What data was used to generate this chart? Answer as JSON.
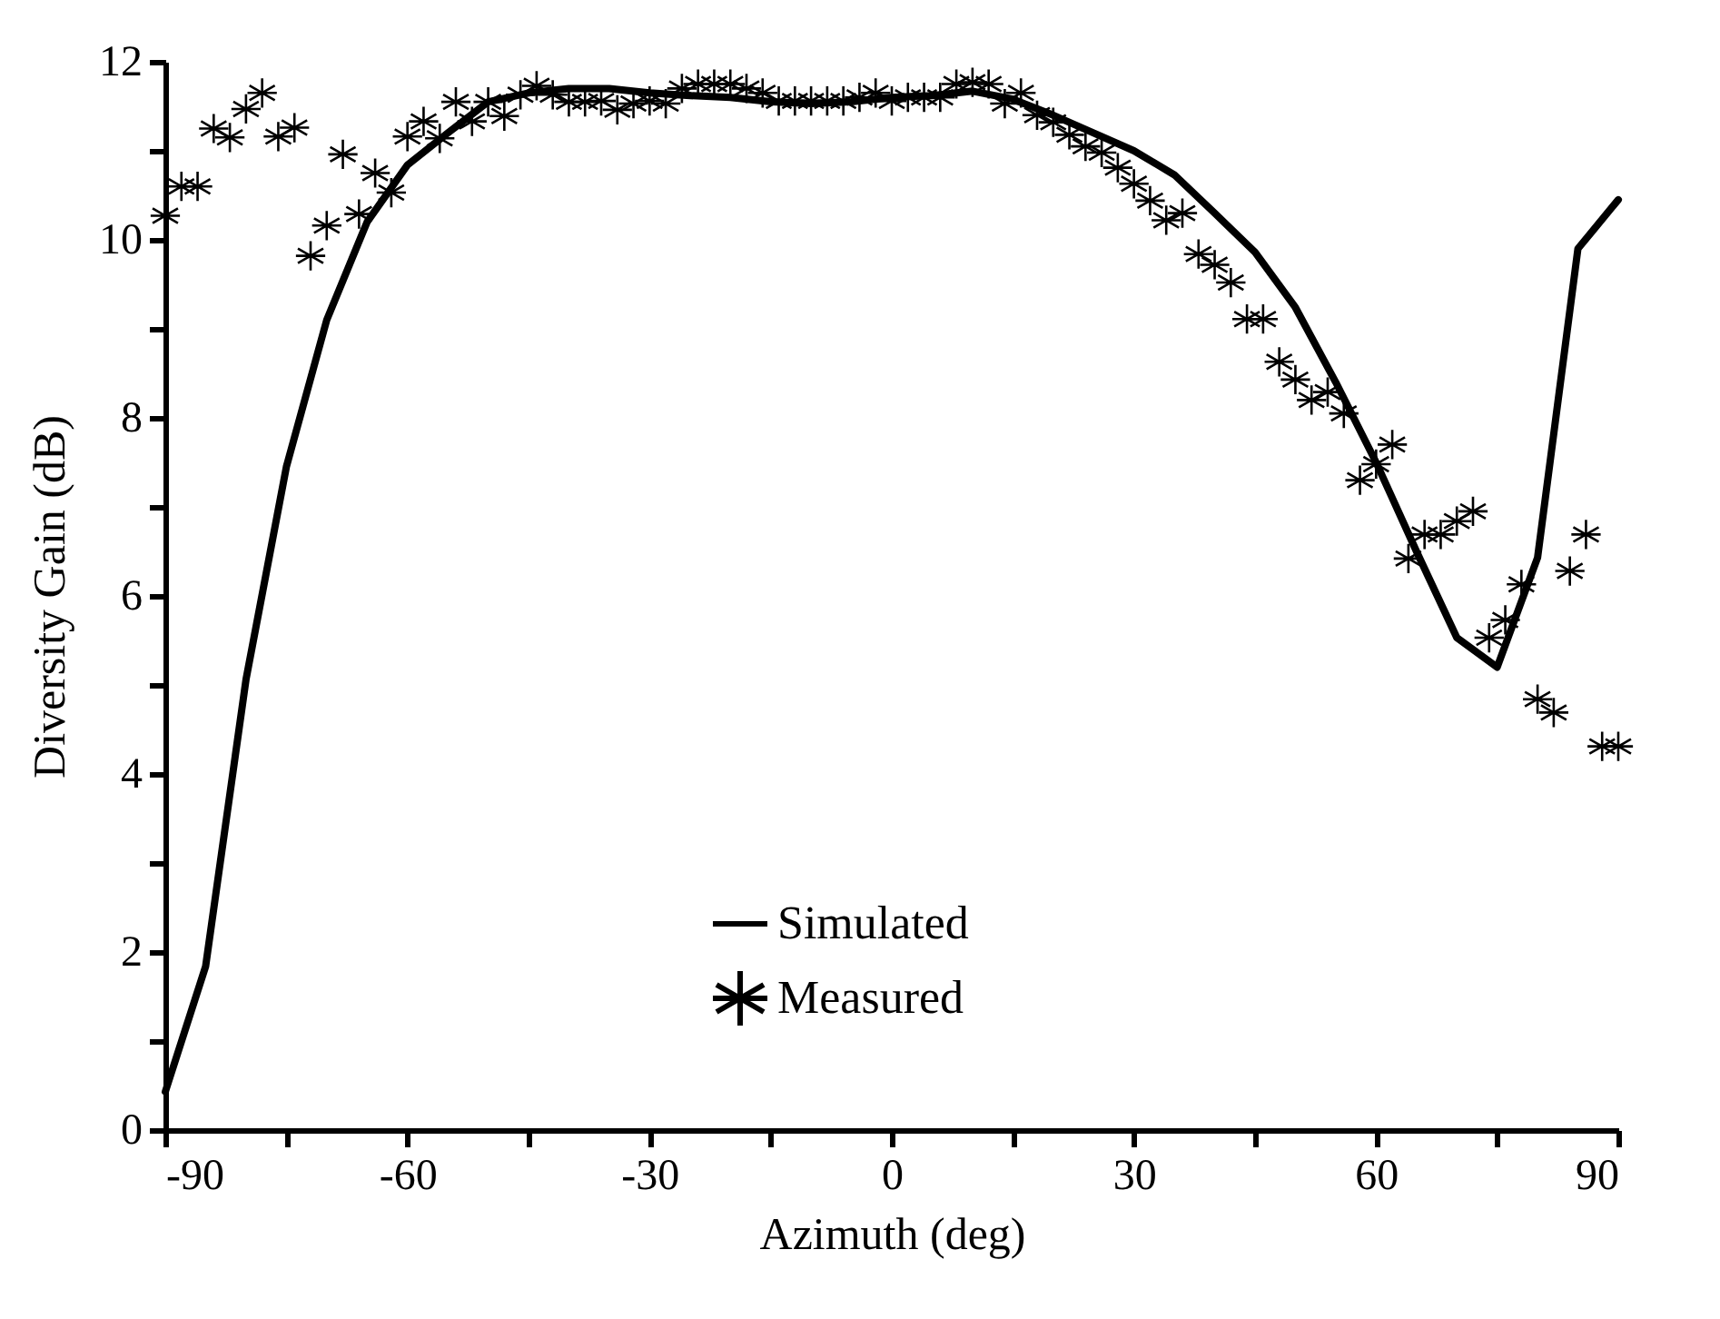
{
  "chart_data": {
    "type": "line",
    "xlabel": "Azimuth (deg)",
    "ylabel": "Diversity Gain (dB)",
    "xlim": [
      -90,
      90
    ],
    "ylim": [
      0,
      12
    ],
    "xticks": [
      -90,
      {
        "value": -75,
        "label": null
      },
      -60,
      {
        "value": -45,
        "label": null
      },
      -30,
      {
        "value": -15,
        "label": null
      },
      0,
      {
        "value": 15,
        "label": null
      },
      30,
      {
        "value": 45,
        "label": null
      },
      60,
      {
        "value": 75,
        "label": null
      },
      90
    ],
    "yticks": [
      0,
      {
        "value": 1,
        "label": null
      },
      2,
      {
        "value": 3,
        "label": null
      },
      4,
      {
        "value": 5,
        "label": null
      },
      6,
      {
        "value": 7,
        "label": null
      },
      8,
      {
        "value": 9,
        "label": null
      },
      10,
      {
        "value": 11,
        "label": null
      },
      12
    ],
    "grid": false,
    "legend": "bottom",
    "series": [
      {
        "name": "Simulated",
        "color": "#000000",
        "line_style": "solid",
        "x": [
          -90,
          -85,
          -80,
          -75,
          -70,
          -65,
          -60,
          -55,
          -50,
          -45,
          -40,
          -35,
          -30,
          -25,
          -20,
          -15,
          -10,
          -5,
          0,
          5,
          10,
          15,
          20,
          25,
          30,
          35,
          40,
          45,
          50,
          55,
          60,
          65,
          70,
          75,
          80,
          85,
          90
        ],
        "values": [
          0.43,
          1.84,
          5.06,
          7.45,
          9.1,
          10.2,
          10.84,
          11.2,
          11.55,
          11.65,
          11.7,
          11.7,
          11.65,
          11.62,
          11.6,
          11.55,
          11.53,
          11.55,
          11.6,
          11.62,
          11.67,
          11.58,
          11.4,
          11.2,
          11.0,
          10.73,
          10.3,
          9.86,
          9.24,
          8.4,
          7.5,
          6.5,
          5.53,
          5.2,
          6.43,
          9.9,
          10.45
        ]
      },
      {
        "name": "Measured",
        "type": "scatter",
        "marker": "cross",
        "color": "#000000",
        "x": [
          -90,
          -88,
          -86,
          -84,
          -82,
          -80,
          -78,
          -76,
          -74,
          -72,
          -70,
          -68,
          -66,
          -64,
          -62,
          -60,
          -58,
          -56,
          -54,
          -52,
          -50,
          -48,
          -46,
          -44,
          -42,
          -40,
          -38,
          -36,
          -34,
          -32,
          -30,
          -28,
          -26,
          -24,
          -22,
          -20,
          -18,
          -16,
          -14,
          -12,
          -10,
          -8,
          -6,
          -4,
          -2,
          0,
          2,
          4,
          6,
          8,
          10,
          12,
          14,
          16,
          18,
          20,
          22,
          24,
          26,
          28,
          30,
          32,
          34,
          36,
          38,
          40,
          42,
          44,
          46,
          48,
          50,
          52,
          54,
          56,
          58,
          60,
          62,
          64,
          66,
          68,
          70,
          72,
          74,
          76,
          78,
          80,
          82,
          84,
          86,
          88,
          90
        ],
        "values": [
          10.27,
          10.6,
          10.6,
          11.25,
          11.15,
          11.47,
          11.65,
          11.16,
          11.26,
          9.82,
          10.16,
          10.96,
          10.29,
          10.75,
          10.53,
          11.16,
          11.33,
          11.14,
          11.55,
          11.33,
          11.55,
          11.39,
          11.63,
          11.73,
          11.63,
          11.55,
          11.55,
          11.56,
          11.46,
          11.53,
          11.56,
          11.53,
          11.7,
          11.75,
          11.75,
          11.75,
          11.7,
          11.65,
          11.56,
          11.56,
          11.56,
          11.56,
          11.56,
          11.6,
          11.65,
          11.56,
          11.6,
          11.6,
          11.6,
          11.75,
          11.77,
          11.75,
          11.53,
          11.65,
          11.4,
          11.32,
          11.18,
          11.05,
          10.98,
          10.81,
          10.63,
          10.44,
          10.22,
          10.3,
          9.84,
          9.72,
          9.52,
          9.11,
          9.11,
          8.63,
          8.43,
          8.2,
          8.29,
          8.05,
          7.3,
          7.48,
          7.7,
          6.42,
          6.69,
          6.69,
          6.84,
          6.95,
          5.53,
          5.73,
          6.13,
          4.84,
          4.69,
          6.28,
          6.69,
          4.31,
          4.31
        ]
      }
    ]
  }
}
